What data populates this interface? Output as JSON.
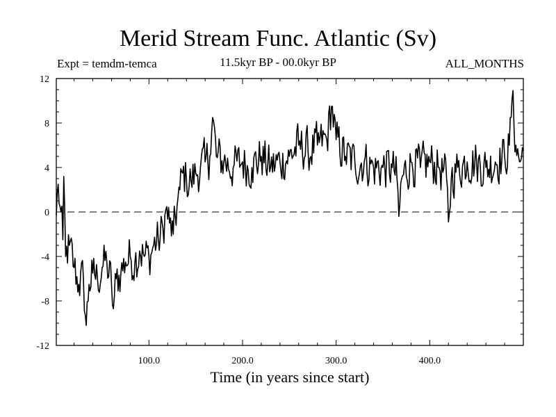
{
  "chart_data": {
    "type": "line",
    "title": "Merid Stream Func. Atlantic (Sv)",
    "subtitle_left": "Expt = temdm-temca",
    "subtitle_center": "11.5kyr BP - 00.0kyr BP",
    "subtitle_right": "ALL_MONTHS",
    "xlabel": "Time (in years since start)",
    "ylabel": "",
    "xlim": [
      1,
      500
    ],
    "ylim": [
      -12,
      12
    ],
    "x_ticks": [
      100,
      200,
      300,
      400
    ],
    "x_tick_labels": [
      "100.0",
      "200.0",
      "300.0",
      "400.0"
    ],
    "y_ticks": [
      -12,
      -8,
      -4,
      0,
      4,
      8,
      12
    ],
    "y_tick_labels": [
      "-12",
      "-8",
      "-4",
      "0",
      "4",
      "8",
      "12"
    ],
    "reference_line": 0,
    "series": [
      {
        "name": "Merid Stream Func. Atlantic",
        "color": "#000000",
        "style": "noisy-annual-series",
        "anchors": [
          [
            1,
            -0.3
          ],
          [
            3,
            2.5
          ],
          [
            5,
            0.5
          ],
          [
            8,
            -2.5
          ],
          [
            9,
            3.2
          ],
          [
            11,
            -4.0
          ],
          [
            15,
            -3.0
          ],
          [
            20,
            -5.0
          ],
          [
            25,
            -6.5
          ],
          [
            30,
            -6.0
          ],
          [
            33,
            -10.2
          ],
          [
            36,
            -6.5
          ],
          [
            40,
            -5.5
          ],
          [
            45,
            -6.0
          ],
          [
            50,
            -5.0
          ],
          [
            55,
            -4.5
          ],
          [
            60,
            -6.5
          ],
          [
            62,
            -8.7
          ],
          [
            65,
            -6.0
          ],
          [
            70,
            -5.5
          ],
          [
            75,
            -4.5
          ],
          [
            80,
            -4.0
          ],
          [
            85,
            -4.5
          ],
          [
            90,
            -3.5
          ],
          [
            95,
            -4.0
          ],
          [
            100,
            -4.0
          ],
          [
            105,
            -3.0
          ],
          [
            110,
            -2.5
          ],
          [
            115,
            -1.5
          ],
          [
            118,
            0.2
          ],
          [
            122,
            -1.0
          ],
          [
            126,
            -2.0
          ],
          [
            130,
            0.5
          ],
          [
            133,
            2.0
          ],
          [
            136,
            3.5
          ],
          [
            140,
            3.0
          ],
          [
            145,
            2.8
          ],
          [
            150,
            3.5
          ],
          [
            155,
            4.0
          ],
          [
            160,
            4.5
          ],
          [
            165,
            5.0
          ],
          [
            168,
            8.5
          ],
          [
            172,
            5.0
          ],
          [
            180,
            4.5
          ],
          [
            190,
            4.0
          ],
          [
            200,
            4.5
          ],
          [
            210,
            4.0
          ],
          [
            220,
            5.0
          ],
          [
            230,
            4.0
          ],
          [
            240,
            4.5
          ],
          [
            250,
            5.0
          ],
          [
            260,
            6.0
          ],
          [
            270,
            5.5
          ],
          [
            280,
            6.0
          ],
          [
            290,
            6.5
          ],
          [
            295,
            9.5
          ],
          [
            300,
            6.5
          ],
          [
            310,
            5.0
          ],
          [
            320,
            4.5
          ],
          [
            330,
            4.5
          ],
          [
            340,
            4.0
          ],
          [
            350,
            4.0
          ],
          [
            360,
            4.0
          ],
          [
            365,
            3.0
          ],
          [
            367,
            -0.4
          ],
          [
            370,
            3.0
          ],
          [
            380,
            4.5
          ],
          [
            390,
            4.0
          ],
          [
            400,
            4.5
          ],
          [
            410,
            4.0
          ],
          [
            418,
            3.0
          ],
          [
            420,
            -0.9
          ],
          [
            423,
            3.0
          ],
          [
            430,
            4.0
          ],
          [
            440,
            4.5
          ],
          [
            450,
            4.5
          ],
          [
            460,
            4.0
          ],
          [
            470,
            4.5
          ],
          [
            480,
            5.0
          ],
          [
            485,
            6.0
          ],
          [
            488,
            10.2
          ],
          [
            492,
            6.0
          ],
          [
            496,
            4.5
          ],
          [
            500,
            5.5
          ]
        ],
        "noise_amplitude": 1.2
      }
    ]
  }
}
